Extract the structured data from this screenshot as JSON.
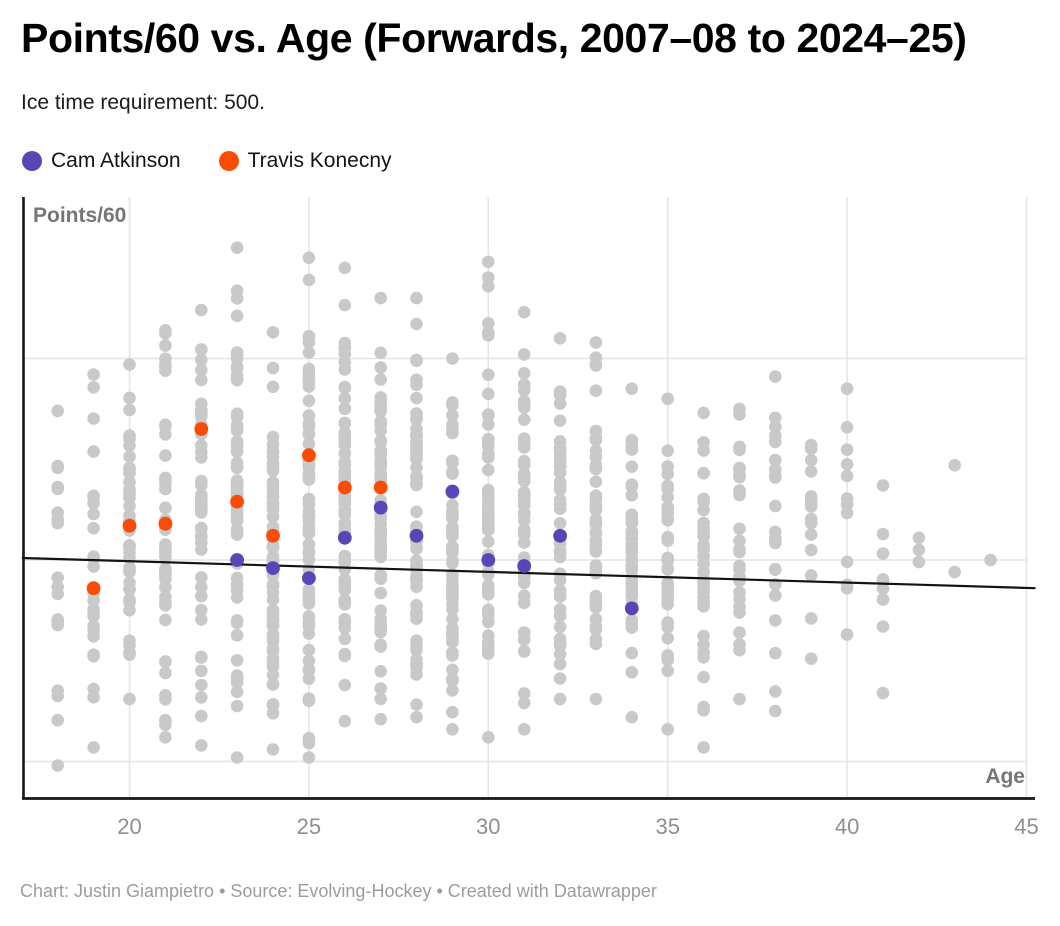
{
  "header": {
    "title": "Points/60 vs. Age (Forwards, 2007–08 to 2024–25)",
    "subtitle": "Ice time requirement: 500."
  },
  "legend": {
    "items": [
      {
        "label": "Cam Atkinson",
        "color": "#5846b6"
      },
      {
        "label": "Travis Konecny",
        "color": "#fb4c05"
      }
    ]
  },
  "footer": {
    "text": "Chart: Justin Giampietro • Source: Evolving-Hockey • Created with Datawrapper"
  },
  "colors": {
    "background_dots": "#c9c9c9",
    "gridline": "#e4e4e4",
    "axis_line": "#161616",
    "trend_line": "#131313",
    "tick_label": "#8f8f8f",
    "axis_title": "#767676"
  },
  "chart_data": {
    "type": "scatter",
    "title": "Points/60 vs. Age (Forwards, 2007–08 to 2024–25)",
    "subtitle": "Ice time requirement: 500.",
    "x_axis": {
      "label": "Age",
      "ticks": [
        20,
        25,
        30,
        35,
        40,
        45
      ],
      "range": [
        17.0,
        45.25
      ],
      "gridlines": true
    },
    "y_axis": {
      "label": "Points/60",
      "tick_labels_visible": false,
      "gridline_values_assumed": [
        1,
        2,
        3
      ],
      "range_assumed": [
        0.8,
        3.8
      ],
      "gridlines": true
    },
    "legend_position": "top-left",
    "series": [
      {
        "name": "Cam Atkinson",
        "color": "#5846b6",
        "points": [
          {
            "age": 23,
            "p60": 2.0
          },
          {
            "age": 24,
            "p60": 1.96
          },
          {
            "age": 25,
            "p60": 1.91
          },
          {
            "age": 26,
            "p60": 2.11
          },
          {
            "age": 27,
            "p60": 2.26
          },
          {
            "age": 28,
            "p60": 2.12
          },
          {
            "age": 29,
            "p60": 2.34
          },
          {
            "age": 30,
            "p60": 2.0
          },
          {
            "age": 31,
            "p60": 1.97
          },
          {
            "age": 32,
            "p60": 2.12
          },
          {
            "age": 34,
            "p60": 1.76
          }
        ]
      },
      {
        "name": "Travis Konecny",
        "color": "#fb4c05",
        "points": [
          {
            "age": 19,
            "p60": 1.86
          },
          {
            "age": 20,
            "p60": 2.17
          },
          {
            "age": 21,
            "p60": 2.18
          },
          {
            "age": 22,
            "p60": 2.65
          },
          {
            "age": 23,
            "p60": 2.29
          },
          {
            "age": 24,
            "p60": 2.12
          },
          {
            "age": 25,
            "p60": 2.52
          },
          {
            "age": 26,
            "p60": 2.36
          },
          {
            "age": 27,
            "p60": 2.36
          }
        ]
      }
    ],
    "trend_line": {
      "start": {
        "age": 17.0,
        "p60": 2.01
      },
      "end": {
        "age": 45.25,
        "p60": 1.86
      }
    },
    "background": {
      "name": "All forward seasons (gray distribution)",
      "color": "#c9c9c9",
      "columns": [
        {
          "age": 18,
          "p60_min": 0.98,
          "p60_max": 2.74,
          "count": 18
        },
        {
          "age": 19,
          "p60_min": 1.07,
          "p60_max": 2.92,
          "count": 26
        },
        {
          "age": 20,
          "p60_min": 1.31,
          "p60_max": 2.97,
          "count": 42
        },
        {
          "age": 21,
          "p60_min": 1.12,
          "p60_max": 3.14,
          "count": 48
        },
        {
          "age": 22,
          "p60_min": 1.08,
          "p60_max": 3.24,
          "count": 55
        },
        {
          "age": 23,
          "p60_min": 1.02,
          "p60_max": 3.55,
          "count": 65
        },
        {
          "age": 24,
          "p60_min": 1.06,
          "p60_max": 3.13,
          "count": 65
        },
        {
          "age": 25,
          "p60_min": 1.02,
          "p60_max": 3.5,
          "count": 72
        },
        {
          "age": 26,
          "p60_min": 1.2,
          "p60_max": 3.45,
          "count": 72
        },
        {
          "age": 27,
          "p60_min": 1.21,
          "p60_max": 3.3,
          "count": 70
        },
        {
          "age": 28,
          "p60_min": 1.22,
          "p60_max": 3.3,
          "count": 68
        },
        {
          "age": 29,
          "p60_min": 1.16,
          "p60_max": 3.0,
          "count": 62
        },
        {
          "age": 30,
          "p60_min": 1.12,
          "p60_max": 3.48,
          "count": 58
        },
        {
          "age": 31,
          "p60_min": 1.16,
          "p60_max": 3.23,
          "count": 55
        },
        {
          "age": 32,
          "p60_min": 1.31,
          "p60_max": 3.1,
          "count": 50
        },
        {
          "age": 33,
          "p60_min": 1.31,
          "p60_max": 3.08,
          "count": 48
        },
        {
          "age": 34,
          "p60_min": 1.22,
          "p60_max": 2.85,
          "count": 44
        },
        {
          "age": 35,
          "p60_min": 1.16,
          "p60_max": 2.8,
          "count": 40
        },
        {
          "age": 36,
          "p60_min": 1.07,
          "p60_max": 2.73,
          "count": 36
        },
        {
          "age": 37,
          "p60_min": 1.31,
          "p60_max": 2.75,
          "count": 30
        },
        {
          "age": 38,
          "p60_min": 1.25,
          "p60_max": 2.91,
          "count": 22
        },
        {
          "age": 39,
          "p60_min": 1.51,
          "p60_max": 2.57,
          "count": 15
        },
        {
          "age": 40,
          "p60_min": 1.63,
          "p60_max": 2.85,
          "count": 12
        },
        {
          "age": 41,
          "p60_min": 1.34,
          "p60_max": 2.37,
          "count": 10
        },
        {
          "age": 42,
          "p60_values": [
            2.11,
            2.05,
            1.99
          ]
        },
        {
          "age": 43,
          "p60_values": [
            2.47,
            1.94
          ]
        },
        {
          "age": 44,
          "p60_values": [
            2.0
          ]
        }
      ]
    }
  }
}
